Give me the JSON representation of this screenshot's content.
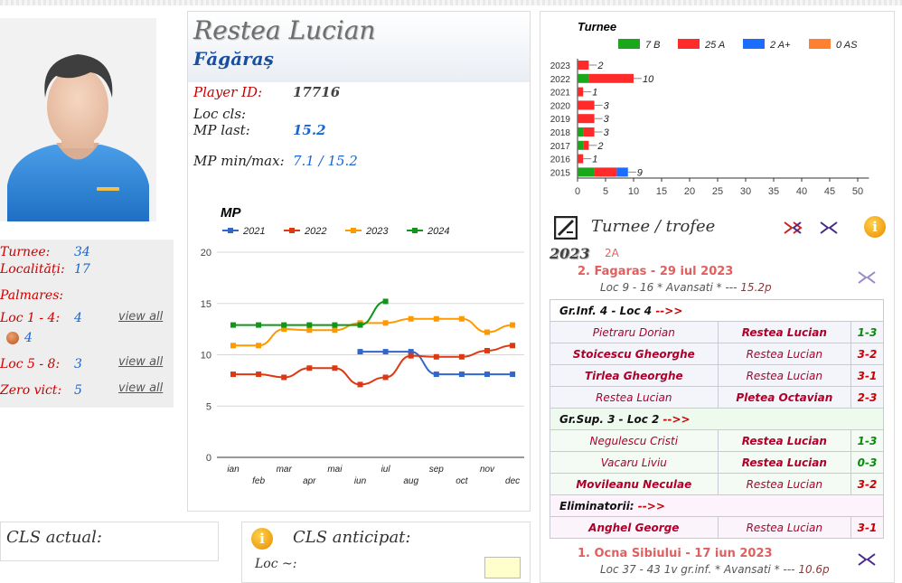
{
  "player": {
    "name": "Restea Lucian",
    "city": "Făgăraș",
    "id_label": "Player ID:",
    "id": "17716",
    "loc_cls_label": "Loc cls:",
    "mp_last_label": "MP last:",
    "mp_last": "15.2",
    "mp_minmax_label": "MP min/max:",
    "mp_minmax": "7.1 / 15.2"
  },
  "stats": {
    "turnee_label": "Turnee:",
    "turnee": "34",
    "localitati_label": "Localități:",
    "localitati": "17",
    "palmares_label": "Palmares:",
    "loc14_label": "Loc 1 - 4:",
    "loc14": "4",
    "medal_count": "4",
    "loc58_label": "Loc 5 - 8:",
    "loc58": "3",
    "zero_label": "Zero vict:",
    "zero": "5",
    "view_all": "view all"
  },
  "cls": {
    "actual_label": "CLS actual:",
    "anticipat_label": "CLS anticipat:",
    "loc_label": "Loc ~:"
  },
  "colors": {
    "s2021": "#3366cc",
    "s2022": "#dc3912",
    "s2023": "#ff9900",
    "s2024": "#109618",
    "b7": "#1aa81a",
    "a25": "#ff2a2a",
    "aplus": "#1a6dff",
    "as": "#ff8030"
  },
  "chart_data": [
    {
      "type": "line",
      "title": "MP",
      "categories": [
        "ian",
        "feb",
        "mar",
        "apr",
        "mai",
        "iun",
        "iul",
        "aug",
        "sep",
        "oct",
        "nov",
        "dec"
      ],
      "ylim": [
        0,
        20
      ],
      "yticks": [
        0,
        5,
        10,
        15,
        20
      ],
      "grid": true,
      "legend": "top",
      "series": [
        {
          "name": "2021",
          "values": [
            null,
            null,
            null,
            null,
            null,
            10.3,
            10.3,
            10.3,
            8.1,
            8.1,
            8.1,
            8.1
          ]
        },
        {
          "name": "2022",
          "values": [
            8.1,
            8.1,
            7.8,
            8.7,
            8.7,
            7.1,
            7.8,
            9.9,
            9.8,
            9.8,
            10.4,
            10.9
          ]
        },
        {
          "name": "2023",
          "values": [
            10.9,
            10.9,
            12.5,
            12.4,
            12.4,
            13.1,
            13.1,
            13.5,
            13.5,
            13.5,
            12.2,
            12.9
          ]
        },
        {
          "name": "2024",
          "values": [
            12.9,
            12.9,
            12.9,
            12.9,
            12.9,
            12.9,
            15.2,
            null,
            null,
            null,
            null,
            null
          ]
        }
      ]
    },
    {
      "type": "bar",
      "orientation": "horizontal",
      "stacked": true,
      "title": "Turnee",
      "legend": "top",
      "legend_entries": [
        "7 B",
        "25 A",
        "2 A+",
        "0 AS"
      ],
      "categories": [
        "2023",
        "2022",
        "2021",
        "2020",
        "2019",
        "2018",
        "2017",
        "2016",
        "2015"
      ],
      "xlim": [
        0,
        52
      ],
      "xticks": [
        0,
        5,
        10,
        15,
        20,
        25,
        30,
        35,
        40,
        45,
        50
      ],
      "series": [
        {
          "name": "7 B",
          "values": [
            0,
            2,
            0,
            0,
            0,
            1,
            1,
            0,
            3
          ]
        },
        {
          "name": "25 A",
          "values": [
            2,
            8,
            1,
            3,
            3,
            2,
            1,
            1,
            4
          ]
        },
        {
          "name": "2 A+",
          "values": [
            0,
            0,
            0,
            0,
            0,
            0,
            0,
            0,
            2
          ]
        },
        {
          "name": "0 AS",
          "values": [
            0,
            0,
            0,
            0,
            0,
            0,
            0,
            0,
            0
          ]
        }
      ],
      "totals": [
        "2",
        "10",
        "1",
        "3",
        "3",
        "3",
        "2",
        "1",
        "9"
      ]
    }
  ],
  "trofee": {
    "title": "Turnee / trofee",
    "year": "2023",
    "year_cat": "2A",
    "t1_title": "2. Fagaras - 29 iul 2023",
    "t1_sub": "Loc 9 - 16 * Avansati * ---",
    "t1_mp": "15.2p",
    "t2_title": "1. Ocna Sibiului - 17 iun 2023",
    "t2_sub": "Loc 37 - 43 1v gr.inf. * Avansati * ---",
    "t2_mp": "10.6p",
    "arrow": "-->>",
    "groups": [
      {
        "title": "Gr.Inf. 4 - Loc 4",
        "cls": "g1",
        "games": [
          {
            "p1": "Pietraru Dorian",
            "p2": "Restea Lucian",
            "w": 2,
            "res": "1-3",
            "win": true
          },
          {
            "p1": "Stoicescu Gheorghe",
            "p2": "Restea Lucian",
            "w": 1,
            "res": "3-2",
            "win": false
          },
          {
            "p1": "Tirlea Gheorghe",
            "p2": "Restea Lucian",
            "w": 1,
            "res": "3-1",
            "win": false
          },
          {
            "p1": "Restea Lucian",
            "p2": "Pletea Octavian",
            "w": 2,
            "res": "2-3",
            "win": false
          }
        ]
      },
      {
        "title": "Gr.Sup. 3 - Loc 2",
        "cls": "g2",
        "games": [
          {
            "p1": "Negulescu Cristi",
            "p2": "Restea Lucian",
            "w": 2,
            "res": "1-3",
            "win": true
          },
          {
            "p1": "Vacaru Liviu",
            "p2": "Restea Lucian",
            "w": 2,
            "res": "0-3",
            "win": true
          },
          {
            "p1": "Movileanu Neculae",
            "p2": "Restea Lucian",
            "w": 1,
            "res": "3-2",
            "win": false
          }
        ]
      },
      {
        "title": "Eliminatorii:",
        "cls": "g3",
        "games": [
          {
            "p1": "Anghel George",
            "p2": "Restea Lucian",
            "w": 1,
            "res": "3-1",
            "win": false
          }
        ]
      }
    ]
  }
}
